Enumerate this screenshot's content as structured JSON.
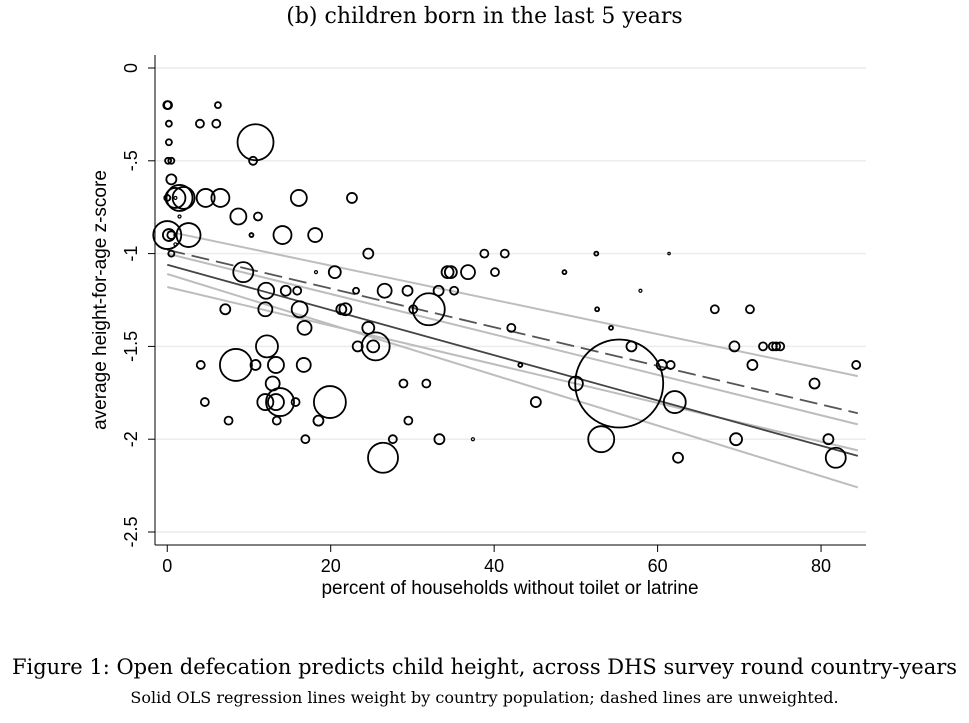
{
  "chart_data": {
    "type": "scatter",
    "title": "(b) children born in the last 5 years",
    "xlabel": "percent of households without toilet or latrine",
    "ylabel": "average height-for-age z-score",
    "xlim": [
      -1.5,
      85.5
    ],
    "ylim": [
      -2.57,
      0.07
    ],
    "x_ticks": [
      0,
      20,
      40,
      60,
      80
    ],
    "y_ticks": [
      0,
      -0.5,
      -1,
      -1.5,
      -2,
      -2.5
    ],
    "x_tick_labels": [
      "0",
      "20",
      "40",
      "60",
      "80"
    ],
    "y_tick_labels": [
      "0",
      "-.5",
      "-1",
      "-1.5",
      "-2",
      "-2.5"
    ],
    "grid": true,
    "point_size_meaning": "country population (marker area)",
    "points": [
      {
        "x": 0.0,
        "y": -0.2,
        "s": 4
      },
      {
        "x": 0.1,
        "y": -0.2,
        "s": 4
      },
      {
        "x": 0.2,
        "y": -0.3,
        "s": 3
      },
      {
        "x": 0.2,
        "y": -0.4,
        "s": 3
      },
      {
        "x": 0.1,
        "y": -0.5,
        "s": 3
      },
      {
        "x": 0.5,
        "y": -0.5,
        "s": 3
      },
      {
        "x": 0.5,
        "y": -0.6,
        "s": 5
      },
      {
        "x": 0.0,
        "y": -0.7,
        "s": 3
      },
      {
        "x": 1.0,
        "y": -0.7,
        "s": 10
      },
      {
        "x": 1.5,
        "y": -0.7,
        "s": 13
      },
      {
        "x": 2.0,
        "y": -0.7,
        "s": 11
      },
      {
        "x": 1.0,
        "y": -0.7,
        "s": 1.5
      },
      {
        "x": 1.5,
        "y": -0.8,
        "s": 1.5
      },
      {
        "x": 0.0,
        "y": -0.9,
        "s": 14
      },
      {
        "x": 0.2,
        "y": -0.9,
        "s": 6
      },
      {
        "x": 0.5,
        "y": -0.9,
        "s": 4
      },
      {
        "x": 1.0,
        "y": -0.9,
        "s": 1.5
      },
      {
        "x": 2.6,
        "y": -0.9,
        "s": 12
      },
      {
        "x": 0.5,
        "y": -1.0,
        "s": 3
      },
      {
        "x": 1.0,
        "y": -0.95,
        "s": 1.5
      },
      {
        "x": 4.0,
        "y": -0.3,
        "s": 4
      },
      {
        "x": 6.0,
        "y": -0.3,
        "s": 4
      },
      {
        "x": 6.2,
        "y": -0.2,
        "s": 3
      },
      {
        "x": 4.7,
        "y": -0.7,
        "s": 9
      },
      {
        "x": 6.5,
        "y": -0.7,
        "s": 9
      },
      {
        "x": 8.7,
        "y": -0.8,
        "s": 8
      },
      {
        "x": 10.3,
        "y": -0.9,
        "s": 2
      },
      {
        "x": 10.5,
        "y": -0.5,
        "s": 4
      },
      {
        "x": 10.8,
        "y": -0.4,
        "s": 18
      },
      {
        "x": 11.1,
        "y": -0.8,
        "s": 4
      },
      {
        "x": 14.1,
        "y": -0.9,
        "s": 9
      },
      {
        "x": 16.1,
        "y": -0.7,
        "s": 8
      },
      {
        "x": 18.1,
        "y": -0.9,
        "s": 7
      },
      {
        "x": 22.6,
        "y": -0.7,
        "s": 5
      },
      {
        "x": 9.3,
        "y": -1.1,
        "s": 10
      },
      {
        "x": 7.1,
        "y": -1.3,
        "s": 5
      },
      {
        "x": 12.1,
        "y": -1.2,
        "s": 8
      },
      {
        "x": 12.0,
        "y": -1.3,
        "s": 7
      },
      {
        "x": 14.5,
        "y": -1.2,
        "s": 5
      },
      {
        "x": 15.9,
        "y": -1.2,
        "s": 4
      },
      {
        "x": 16.2,
        "y": -1.3,
        "s": 8
      },
      {
        "x": 16.8,
        "y": -1.4,
        "s": 7
      },
      {
        "x": 18.2,
        "y": -1.1,
        "s": 1.5
      },
      {
        "x": 20.5,
        "y": -1.1,
        "s": 6
      },
      {
        "x": 21.3,
        "y": -1.3,
        "s": 5
      },
      {
        "x": 21.8,
        "y": -1.3,
        "s": 6
      },
      {
        "x": 23.1,
        "y": -1.2,
        "s": 3
      },
      {
        "x": 24.6,
        "y": -1.0,
        "s": 5
      },
      {
        "x": 24.6,
        "y": -1.4,
        "s": 6
      },
      {
        "x": 23.3,
        "y": -1.5,
        "s": 5
      },
      {
        "x": 25.2,
        "y": -1.5,
        "s": 6
      },
      {
        "x": 25.5,
        "y": -1.5,
        "s": 14
      },
      {
        "x": 26.6,
        "y": -1.2,
        "s": 7
      },
      {
        "x": 29.4,
        "y": -1.2,
        "s": 5
      },
      {
        "x": 30.1,
        "y": -1.3,
        "s": 4
      },
      {
        "x": 32.0,
        "y": -1.3,
        "s": 16
      },
      {
        "x": 33.2,
        "y": -1.2,
        "s": 5
      },
      {
        "x": 34.3,
        "y": -1.1,
        "s": 6
      },
      {
        "x": 34.7,
        "y": -1.1,
        "s": 6
      },
      {
        "x": 35.1,
        "y": -1.2,
        "s": 4
      },
      {
        "x": 36.8,
        "y": -1.1,
        "s": 7
      },
      {
        "x": 38.8,
        "y": -1.0,
        "s": 4
      },
      {
        "x": 40.1,
        "y": -1.1,
        "s": 4
      },
      {
        "x": 41.3,
        "y": -1.0,
        "s": 4
      },
      {
        "x": 42.1,
        "y": -1.4,
        "s": 4
      },
      {
        "x": 43.2,
        "y": -1.6,
        "s": 2
      },
      {
        "x": 48.6,
        "y": -1.1,
        "s": 2
      },
      {
        "x": 52.5,
        "y": -1.0,
        "s": 2
      },
      {
        "x": 52.6,
        "y": -1.3,
        "s": 2
      },
      {
        "x": 54.3,
        "y": -1.4,
        "s": 2
      },
      {
        "x": 57.9,
        "y": -1.2,
        "s": 1.5
      },
      {
        "x": 61.4,
        "y": -1.0,
        "s": 1.2
      },
      {
        "x": 56.8,
        "y": -1.5,
        "s": 5
      },
      {
        "x": 60.5,
        "y": -1.6,
        "s": 5
      },
      {
        "x": 61.6,
        "y": -1.6,
        "s": 4
      },
      {
        "x": 55.3,
        "y": -1.7,
        "s": 44
      },
      {
        "x": 50.0,
        "y": -1.7,
        "s": 7
      },
      {
        "x": 62.1,
        "y": -1.8,
        "s": 11
      },
      {
        "x": 53.1,
        "y": -2.0,
        "s": 13
      },
      {
        "x": 62.5,
        "y": -2.1,
        "s": 5
      },
      {
        "x": 67.0,
        "y": -1.3,
        "s": 4
      },
      {
        "x": 71.3,
        "y": -1.3,
        "s": 4
      },
      {
        "x": 69.4,
        "y": -1.5,
        "s": 5
      },
      {
        "x": 71.6,
        "y": -1.6,
        "s": 5
      },
      {
        "x": 72.9,
        "y": -1.5,
        "s": 4
      },
      {
        "x": 74.1,
        "y": -1.5,
        "s": 4
      },
      {
        "x": 74.5,
        "y": -1.5,
        "s": 4
      },
      {
        "x": 75.0,
        "y": -1.5,
        "s": 4
      },
      {
        "x": 69.6,
        "y": -2.0,
        "s": 6
      },
      {
        "x": 79.2,
        "y": -1.7,
        "s": 5
      },
      {
        "x": 80.9,
        "y": -2.0,
        "s": 5
      },
      {
        "x": 81.8,
        "y": -2.1,
        "s": 10
      },
      {
        "x": 84.3,
        "y": -1.6,
        "s": 4
      },
      {
        "x": 4.1,
        "y": -1.6,
        "s": 4
      },
      {
        "x": 4.6,
        "y": -1.8,
        "s": 4
      },
      {
        "x": 7.5,
        "y": -1.9,
        "s": 4
      },
      {
        "x": 8.4,
        "y": -1.6,
        "s": 16
      },
      {
        "x": 10.8,
        "y": -1.6,
        "s": 5
      },
      {
        "x": 12.2,
        "y": -1.5,
        "s": 11
      },
      {
        "x": 12.0,
        "y": -1.8,
        "s": 8
      },
      {
        "x": 12.9,
        "y": -1.7,
        "s": 7
      },
      {
        "x": 13.3,
        "y": -1.6,
        "s": 8
      },
      {
        "x": 13.4,
        "y": -1.9,
        "s": 4
      },
      {
        "x": 13.3,
        "y": -1.8,
        "s": 8
      },
      {
        "x": 13.8,
        "y": -1.8,
        "s": 14
      },
      {
        "x": 15.7,
        "y": -1.8,
        "s": 4
      },
      {
        "x": 16.7,
        "y": -1.6,
        "s": 7
      },
      {
        "x": 16.9,
        "y": -2.0,
        "s": 4
      },
      {
        "x": 18.5,
        "y": -1.9,
        "s": 5
      },
      {
        "x": 19.9,
        "y": -1.8,
        "s": 16
      },
      {
        "x": 26.4,
        "y": -2.1,
        "s": 15
      },
      {
        "x": 27.6,
        "y": -2.0,
        "s": 4
      },
      {
        "x": 28.9,
        "y": -1.7,
        "s": 4
      },
      {
        "x": 29.5,
        "y": -1.9,
        "s": 4
      },
      {
        "x": 31.7,
        "y": -1.7,
        "s": 4
      },
      {
        "x": 33.3,
        "y": -2.0,
        "s": 5
      },
      {
        "x": 37.4,
        "y": -2.0,
        "s": 1.5
      },
      {
        "x": 45.1,
        "y": -1.8,
        "s": 5
      }
    ],
    "fit_lines": [
      {
        "style": "solid-dark",
        "x": [
          0,
          84.5
        ],
        "y": [
          -1.06,
          -2.09
        ]
      },
      {
        "style": "dashed-dark",
        "x": [
          0,
          84.5
        ],
        "y": [
          -0.98,
          -1.86
        ]
      },
      {
        "style": "ci-light",
        "x": [
          0,
          84.5
        ],
        "y": [
          -1.0,
          -1.92
        ]
      },
      {
        "style": "ci-light",
        "x": [
          0,
          84.5
        ],
        "y": [
          -1.11,
          -2.26
        ]
      },
      {
        "style": "ci-light",
        "x": [
          0,
          84.5
        ],
        "y": [
          -0.88,
          -1.66
        ]
      },
      {
        "style": "ci-light",
        "x": [
          0,
          84.5
        ],
        "y": [
          -1.18,
          -2.06
        ]
      }
    ]
  },
  "caption": "Figure 1: Open defecation predicts child height, across DHS survey round country-years",
  "note": "Solid OLS regression lines weight by country population; dashed lines are unweighted."
}
